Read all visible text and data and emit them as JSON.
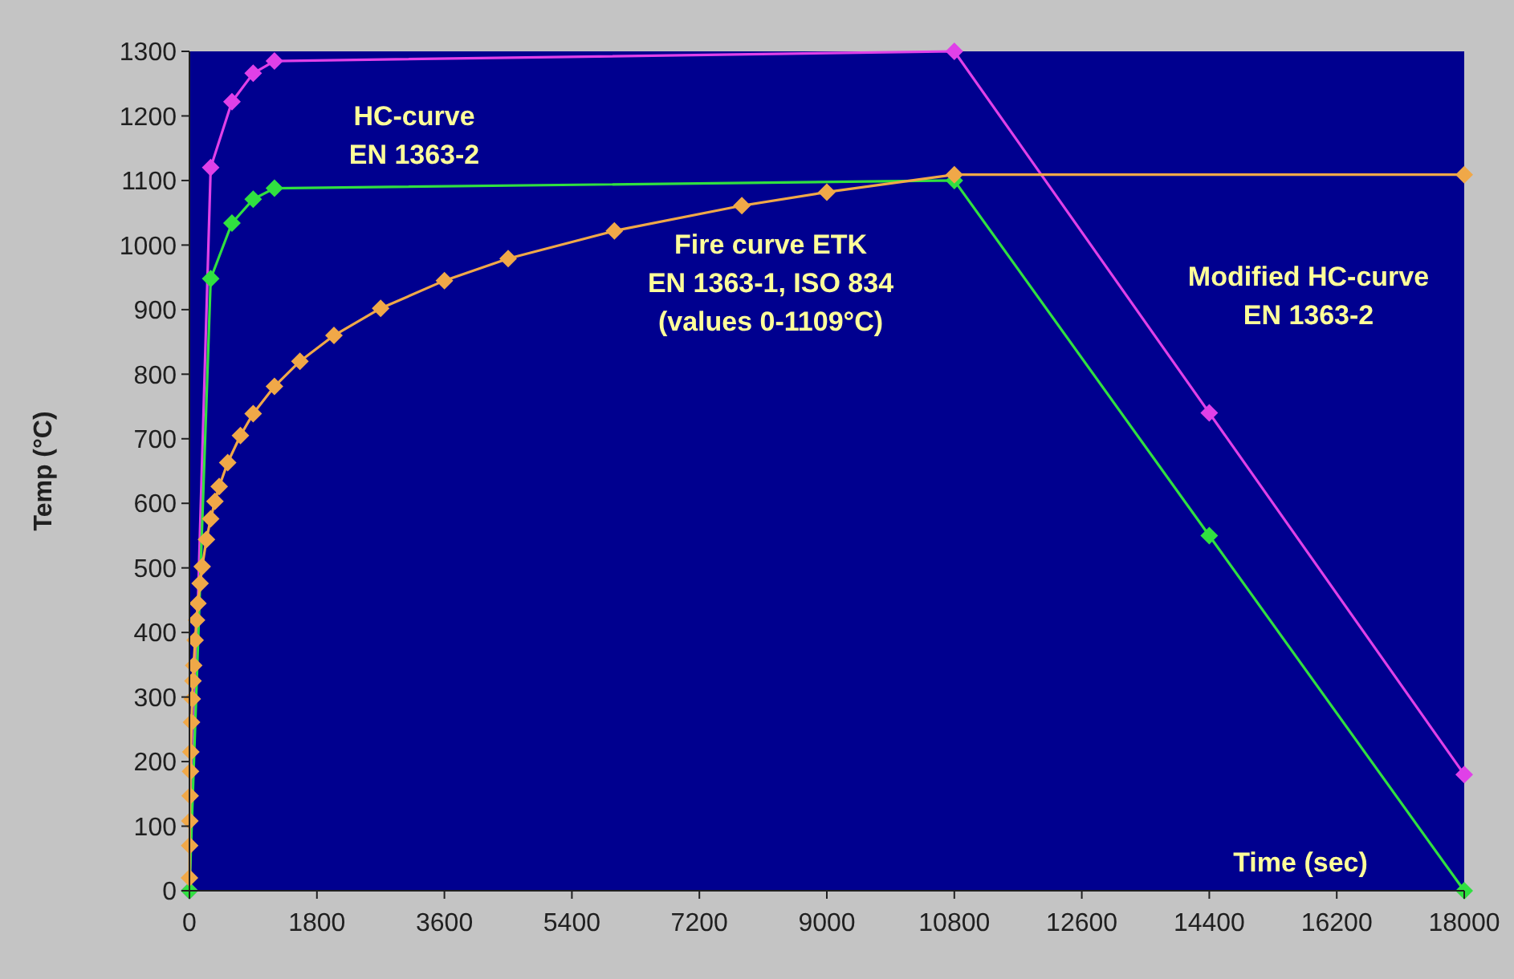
{
  "chart_data": {
    "type": "line",
    "xlabel": "Time (sec)",
    "ylabel": "Temp (°C)",
    "xlim": [
      0,
      18000
    ],
    "xticks": [
      0,
      1800,
      3600,
      5400,
      7200,
      9000,
      10800,
      12600,
      14400,
      16200,
      18000
    ],
    "ylim": [
      0,
      1300
    ],
    "yticks": [
      0,
      100,
      200,
      300,
      400,
      500,
      600,
      700,
      800,
      900,
      1000,
      1100,
      1200,
      1300
    ],
    "grid": false,
    "marker": "diamond",
    "line_style": "solid",
    "series": [
      {
        "name": "Modified HC-curve\nEN 1363-2",
        "color": "#e040e8",
        "x": [
          0,
          300,
          600,
          900,
          1200,
          10800,
          14400,
          18000
        ],
        "values": [
          0,
          1120,
          1222,
          1266,
          1285,
          1300,
          740,
          180
        ]
      },
      {
        "name": "HC-curve\nEN 1363-2",
        "color": "#30e040",
        "x": [
          0,
          300,
          600,
          900,
          1200,
          10800,
          14400,
          18000
        ],
        "values": [
          0,
          948,
          1034,
          1071,
          1088,
          1100,
          550,
          0
        ]
      },
      {
        "name": "Fire curve ETK\nEN 1363-1, ISO 834\n(values 0-1109°C)",
        "color": "#f0a848",
        "x": [
          0,
          3,
          6,
          10,
          15,
          20,
          30,
          40,
          50,
          60,
          80,
          100,
          120,
          150,
          180,
          240,
          300,
          360,
          420,
          540,
          720,
          900,
          1200,
          1560,
          2040,
          2700,
          3600,
          4500,
          6000,
          7800,
          9000,
          10800,
          18000
        ],
        "values": [
          20,
          70,
          108,
          147,
          185,
          215,
          261,
          297,
          325,
          349,
          388,
          419,
          445,
          476,
          502,
          544,
          576,
          603,
          626,
          663,
          705,
          739,
          781,
          820,
          860,
          902,
          945,
          979,
          1022,
          1061,
          1082,
          1109,
          1109
        ]
      }
    ]
  }
}
